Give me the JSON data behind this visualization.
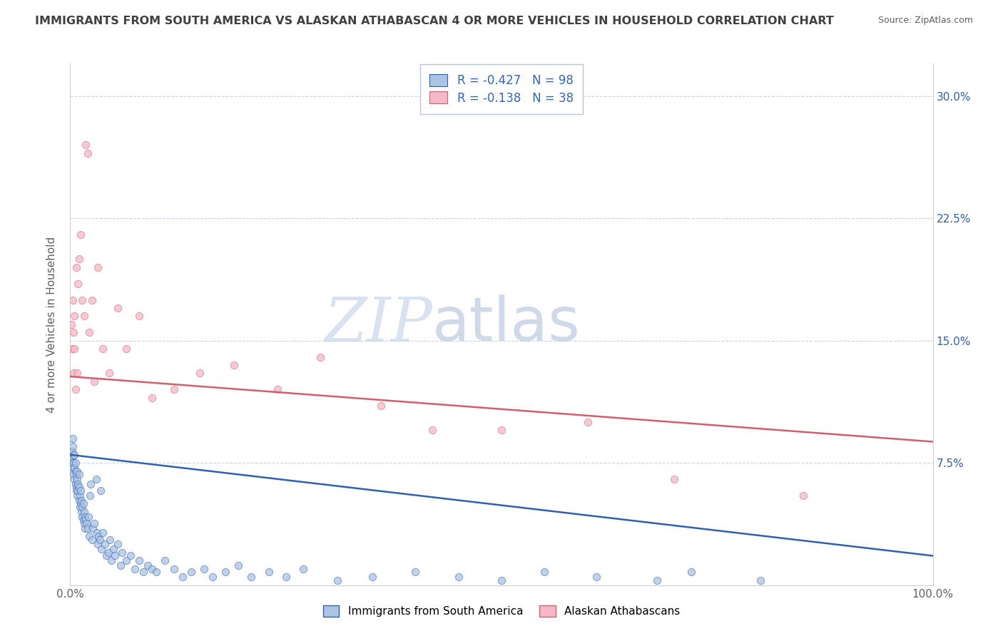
{
  "title": "IMMIGRANTS FROM SOUTH AMERICA VS ALASKAN ATHABASCAN 4 OR MORE VEHICLES IN HOUSEHOLD CORRELATION CHART",
  "source": "Source: ZipAtlas.com",
  "ylabel": "4 or more Vehicles in Household",
  "xmin": 0.0,
  "xmax": 1.0,
  "ymin": 0.0,
  "ymax": 0.32,
  "blue_R": -0.427,
  "blue_N": 98,
  "pink_R": -0.138,
  "pink_N": 38,
  "blue_color": "#aac4e2",
  "pink_color": "#f5b8c8",
  "blue_line_color": "#3060b0",
  "pink_line_color": "#d06070",
  "legend_blue_label": "Immigrants from South America",
  "legend_pink_label": "Alaskan Athabascans",
  "watermark_zip": "ZIP",
  "watermark_atlas": "atlas",
  "background_color": "#ffffff",
  "title_color": "#404040",
  "grid_color": "#c8d4e8",
  "blue_scatter_x": [
    0.001,
    0.002,
    0.002,
    0.003,
    0.003,
    0.003,
    0.004,
    0.004,
    0.004,
    0.005,
    0.005,
    0.005,
    0.006,
    0.006,
    0.006,
    0.007,
    0.007,
    0.007,
    0.008,
    0.008,
    0.008,
    0.009,
    0.009,
    0.01,
    0.01,
    0.01,
    0.011,
    0.011,
    0.012,
    0.012,
    0.013,
    0.013,
    0.014,
    0.014,
    0.015,
    0.015,
    0.016,
    0.016,
    0.017,
    0.017,
    0.018,
    0.019,
    0.02,
    0.021,
    0.022,
    0.023,
    0.024,
    0.025,
    0.026,
    0.028,
    0.03,
    0.031,
    0.032,
    0.033,
    0.034,
    0.035,
    0.036,
    0.038,
    0.04,
    0.042,
    0.044,
    0.046,
    0.048,
    0.05,
    0.052,
    0.055,
    0.058,
    0.06,
    0.065,
    0.07,
    0.075,
    0.08,
    0.085,
    0.09,
    0.095,
    0.1,
    0.11,
    0.12,
    0.13,
    0.14,
    0.155,
    0.165,
    0.18,
    0.195,
    0.21,
    0.23,
    0.25,
    0.27,
    0.31,
    0.35,
    0.4,
    0.45,
    0.5,
    0.55,
    0.61,
    0.68,
    0.72,
    0.8
  ],
  "blue_scatter_y": [
    0.078,
    0.082,
    0.075,
    0.085,
    0.09,
    0.072,
    0.068,
    0.08,
    0.075,
    0.065,
    0.072,
    0.08,
    0.07,
    0.062,
    0.075,
    0.06,
    0.068,
    0.058,
    0.065,
    0.055,
    0.07,
    0.058,
    0.062,
    0.052,
    0.06,
    0.068,
    0.048,
    0.055,
    0.05,
    0.058,
    0.045,
    0.052,
    0.042,
    0.048,
    0.04,
    0.05,
    0.038,
    0.045,
    0.035,
    0.042,
    0.04,
    0.038,
    0.035,
    0.042,
    0.03,
    0.055,
    0.062,
    0.028,
    0.035,
    0.038,
    0.065,
    0.032,
    0.025,
    0.03,
    0.028,
    0.058,
    0.022,
    0.032,
    0.025,
    0.018,
    0.02,
    0.028,
    0.015,
    0.022,
    0.018,
    0.025,
    0.012,
    0.02,
    0.015,
    0.018,
    0.01,
    0.015,
    0.008,
    0.012,
    0.01,
    0.008,
    0.015,
    0.01,
    0.005,
    0.008,
    0.01,
    0.005,
    0.008,
    0.012,
    0.005,
    0.008,
    0.005,
    0.01,
    0.003,
    0.005,
    0.008,
    0.005,
    0.003,
    0.008,
    0.005,
    0.003,
    0.008,
    0.003
  ],
  "pink_scatter_x": [
    0.001,
    0.002,
    0.003,
    0.004,
    0.004,
    0.005,
    0.005,
    0.006,
    0.007,
    0.008,
    0.009,
    0.01,
    0.012,
    0.014,
    0.016,
    0.018,
    0.02,
    0.022,
    0.025,
    0.028,
    0.032,
    0.038,
    0.045,
    0.055,
    0.065,
    0.08,
    0.095,
    0.12,
    0.15,
    0.19,
    0.24,
    0.29,
    0.36,
    0.42,
    0.5,
    0.6,
    0.7,
    0.85
  ],
  "pink_scatter_y": [
    0.16,
    0.145,
    0.175,
    0.13,
    0.155,
    0.145,
    0.165,
    0.12,
    0.195,
    0.13,
    0.185,
    0.2,
    0.215,
    0.175,
    0.165,
    0.27,
    0.265,
    0.155,
    0.175,
    0.125,
    0.195,
    0.145,
    0.13,
    0.17,
    0.145,
    0.165,
    0.115,
    0.12,
    0.13,
    0.135,
    0.12,
    0.14,
    0.11,
    0.095,
    0.095,
    0.1,
    0.065,
    0.055
  ],
  "blue_line_start_y": 0.08,
  "blue_line_end_y": 0.018,
  "pink_line_start_y": 0.128,
  "pink_line_end_y": 0.088
}
